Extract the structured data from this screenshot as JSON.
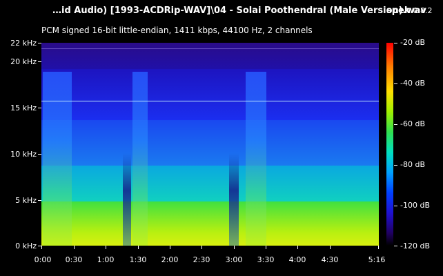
{
  "header": {
    "file_title": "…id Audio) [1993-ACDRip-WAV]\\04 - Solai Poothendral (Male Version).wav",
    "app_name": "spek",
    "app_version": "0.8.2",
    "stream_info": "PCM signed 16-bit little-endian, 1411 kbps, 44100 Hz, 2 channels"
  },
  "frequency_axis": {
    "labels": [
      "22 kHz",
      "20 kHz",
      "15 kHz",
      "10 kHz",
      "5 kHz",
      "0 kHz"
    ]
  },
  "time_axis": {
    "labels": [
      "0:00",
      "0:30",
      "1:00",
      "1:30",
      "2:00",
      "2:30",
      "3:00",
      "3:30",
      "4:00",
      "4:30",
      "5:16"
    ]
  },
  "color_scale": {
    "labels": [
      "-20 dB",
      "-40 dB",
      "-60 dB",
      "-80 dB",
      "-100 dB",
      "-120 dB"
    ],
    "colors": [
      "#ff0000",
      "#ff8000",
      "#ffe000",
      "#30e050",
      "#00a0ff",
      "#0040ff",
      "#200060",
      "#000000"
    ]
  }
}
